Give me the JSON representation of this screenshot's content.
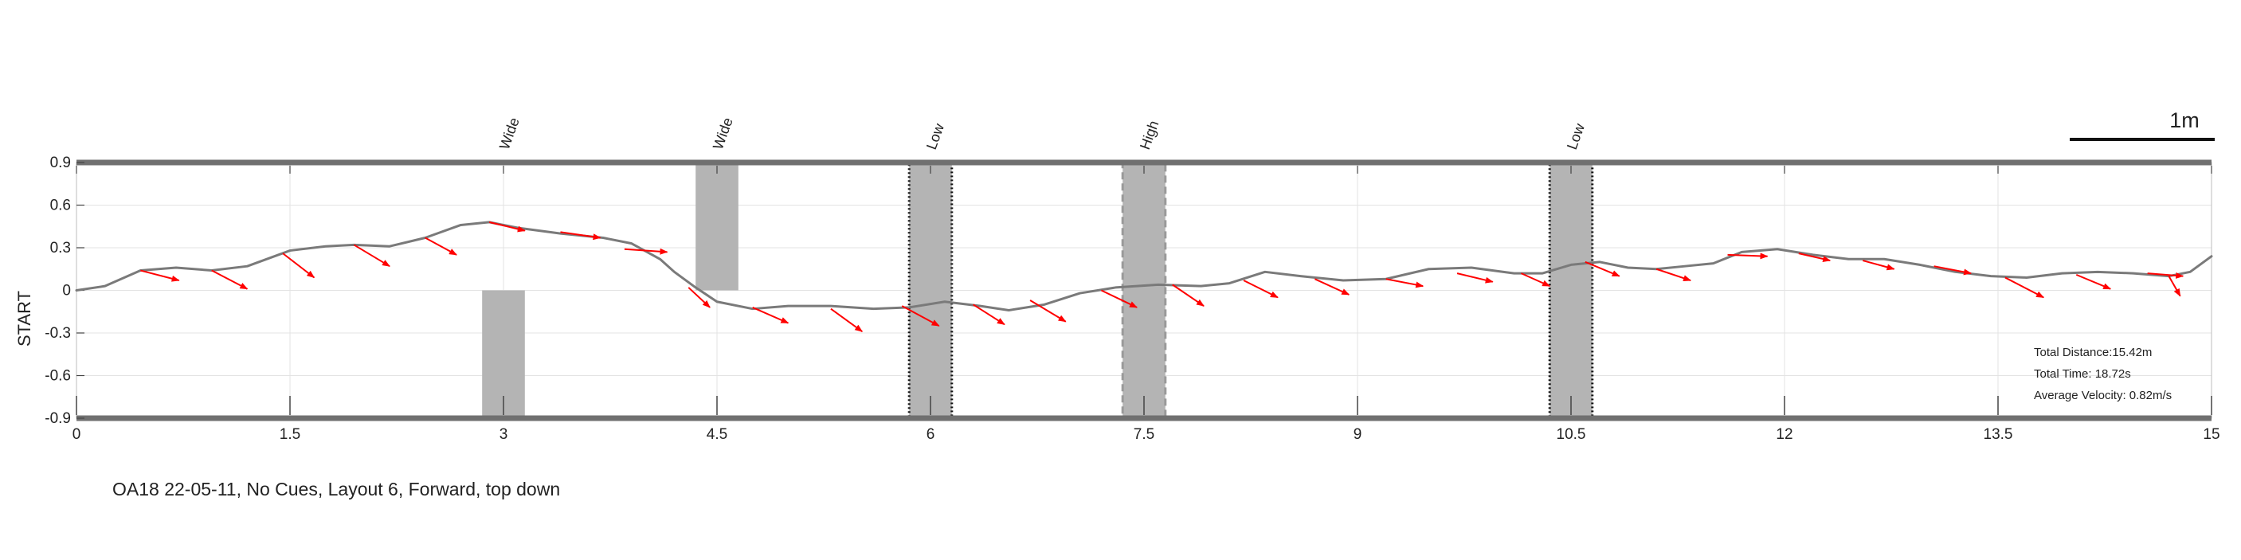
{
  "caption": "OA18 22-05-11, No Cues, Layout 6, Forward, top down",
  "scale_bar": {
    "label": "1m"
  },
  "stats": {
    "distance": "Total Distance:15.42m",
    "time": "Total Time: 18.72s",
    "velocity": "Average Velocity: 0.82m/s"
  },
  "colors": {
    "path": "#7a7a7a",
    "arrows": "#ff0000",
    "obstacle": "#b4b4b4",
    "walls": "#707070"
  },
  "chart_data": {
    "type": "line",
    "title": "",
    "xlabel": "",
    "ylabel": "START",
    "xlim": [
      0,
      15
    ],
    "ylim": [
      -0.9,
      0.9
    ],
    "grid": true,
    "xticks": [
      0,
      1.5,
      3,
      4.5,
      6,
      7.5,
      9,
      10.5,
      12,
      13.5,
      15
    ],
    "xtick_labels": [
      "0",
      "1.5",
      "3",
      "4.5",
      "6",
      "7.5",
      "9",
      "10.5",
      "12",
      "13.5",
      "15"
    ],
    "yticks": [
      0.9,
      0.6,
      0.3,
      0,
      -0.3,
      -0.6,
      -0.9
    ],
    "ytick_labels": [
      "0.9",
      "0.6",
      "0.3",
      "0",
      "-0.3",
      "-0.6",
      "-0.9"
    ],
    "obstacles": [
      {
        "label": "Wide",
        "x": [
          2.85,
          3.15
        ],
        "y": [
          -0.9,
          0
        ],
        "style": "solid"
      },
      {
        "label": "Wide",
        "x": [
          4.35,
          4.65
        ],
        "y": [
          0,
          0.9
        ],
        "style": "solid"
      },
      {
        "label": "Low",
        "x": [
          5.85,
          6.15
        ],
        "y": [
          -0.9,
          0.9
        ],
        "style": "dotted"
      },
      {
        "label": "High",
        "x": [
          7.35,
          7.65
        ],
        "y": [
          -0.9,
          0.9
        ],
        "style": "dashed"
      },
      {
        "label": "Low",
        "x": [
          10.35,
          10.65
        ],
        "y": [
          -0.9,
          0.9
        ],
        "style": "dotted"
      }
    ],
    "series": [
      {
        "x": [
          0,
          0.2,
          0.45,
          0.7,
          0.95,
          1.2,
          1.5,
          1.75,
          1.95,
          2.2,
          2.45,
          2.7,
          2.9,
          3.1,
          3.4,
          3.7,
          3.9,
          4.1,
          4.2,
          4.35,
          4.5,
          4.75,
          5.0,
          5.3,
          5.6,
          5.85,
          6.1,
          6.35,
          6.55,
          6.8,
          7.05,
          7.3,
          7.6,
          7.9,
          8.1,
          8.35,
          8.6,
          8.9,
          9.2,
          9.5,
          9.8,
          10.1,
          10.3,
          10.5,
          10.7,
          10.9,
          11.1,
          11.3,
          11.5,
          11.7,
          11.95,
          12.2,
          12.45,
          12.7,
          12.95,
          13.2,
          13.45,
          13.7,
          13.95,
          14.2,
          14.45,
          14.7,
          14.85,
          15.0
        ],
        "y": [
          0,
          0.03,
          0.14,
          0.16,
          0.14,
          0.17,
          0.28,
          0.31,
          0.32,
          0.31,
          0.37,
          0.46,
          0.48,
          0.44,
          0.4,
          0.37,
          0.33,
          0.22,
          0.13,
          0.02,
          -0.08,
          -0.13,
          -0.11,
          -0.11,
          -0.13,
          -0.12,
          -0.08,
          -0.11,
          -0.14,
          -0.1,
          -0.02,
          0.02,
          0.04,
          0.03,
          0.05,
          0.13,
          0.1,
          0.07,
          0.08,
          0.15,
          0.16,
          0.12,
          0.12,
          0.18,
          0.2,
          0.16,
          0.15,
          0.17,
          0.19,
          0.27,
          0.29,
          0.25,
          0.22,
          0.22,
          0.18,
          0.13,
          0.1,
          0.09,
          0.12,
          0.13,
          0.12,
          0.1,
          0.13,
          0.24
        ]
      }
    ],
    "arrows": [
      {
        "x": 0.45,
        "y": 0.14,
        "dx": 0.27,
        "dy": -0.07
      },
      {
        "x": 0.95,
        "y": 0.14,
        "dx": 0.25,
        "dy": -0.13
      },
      {
        "x": 1.45,
        "y": 0.26,
        "dx": 0.22,
        "dy": -0.17
      },
      {
        "x": 1.95,
        "y": 0.32,
        "dx": 0.25,
        "dy": -0.15
      },
      {
        "x": 2.45,
        "y": 0.37,
        "dx": 0.22,
        "dy": -0.12
      },
      {
        "x": 2.9,
        "y": 0.48,
        "dx": 0.25,
        "dy": -0.06
      },
      {
        "x": 3.4,
        "y": 0.41,
        "dx": 0.28,
        "dy": -0.04
      },
      {
        "x": 3.85,
        "y": 0.29,
        "dx": 0.3,
        "dy": -0.02
      },
      {
        "x": 4.3,
        "y": 0.02,
        "dx": 0.15,
        "dy": -0.14
      },
      {
        "x": 4.75,
        "y": -0.12,
        "dx": 0.25,
        "dy": -0.11
      },
      {
        "x": 5.3,
        "y": -0.13,
        "dx": 0.22,
        "dy": -0.16
      },
      {
        "x": 5.8,
        "y": -0.11,
        "dx": 0.26,
        "dy": -0.14
      },
      {
        "x": 6.3,
        "y": -0.1,
        "dx": 0.22,
        "dy": -0.14
      },
      {
        "x": 6.7,
        "y": -0.07,
        "dx": 0.25,
        "dy": -0.15
      },
      {
        "x": 7.2,
        "y": 0.0,
        "dx": 0.25,
        "dy": -0.12
      },
      {
        "x": 7.7,
        "y": 0.04,
        "dx": 0.22,
        "dy": -0.15
      },
      {
        "x": 8.2,
        "y": 0.07,
        "dx": 0.24,
        "dy": -0.12
      },
      {
        "x": 8.7,
        "y": 0.08,
        "dx": 0.24,
        "dy": -0.11
      },
      {
        "x": 9.2,
        "y": 0.08,
        "dx": 0.26,
        "dy": -0.05
      },
      {
        "x": 9.7,
        "y": 0.12,
        "dx": 0.25,
        "dy": -0.06
      },
      {
        "x": 10.15,
        "y": 0.12,
        "dx": 0.2,
        "dy": -0.09
      },
      {
        "x": 10.6,
        "y": 0.2,
        "dx": 0.24,
        "dy": -0.1
      },
      {
        "x": 11.1,
        "y": 0.15,
        "dx": 0.24,
        "dy": -0.08
      },
      {
        "x": 11.6,
        "y": 0.25,
        "dx": 0.28,
        "dy": -0.01
      },
      {
        "x": 12.1,
        "y": 0.26,
        "dx": 0.22,
        "dy": -0.05
      },
      {
        "x": 12.55,
        "y": 0.21,
        "dx": 0.22,
        "dy": -0.06
      },
      {
        "x": 13.05,
        "y": 0.17,
        "dx": 0.26,
        "dy": -0.05
      },
      {
        "x": 13.55,
        "y": 0.09,
        "dx": 0.27,
        "dy": -0.14
      },
      {
        "x": 14.05,
        "y": 0.11,
        "dx": 0.24,
        "dy": -0.1
      },
      {
        "x": 14.55,
        "y": 0.12,
        "dx": 0.25,
        "dy": -0.02
      },
      {
        "x": 14.7,
        "y": 0.1,
        "dx": 0.08,
        "dy": -0.14
      }
    ]
  }
}
